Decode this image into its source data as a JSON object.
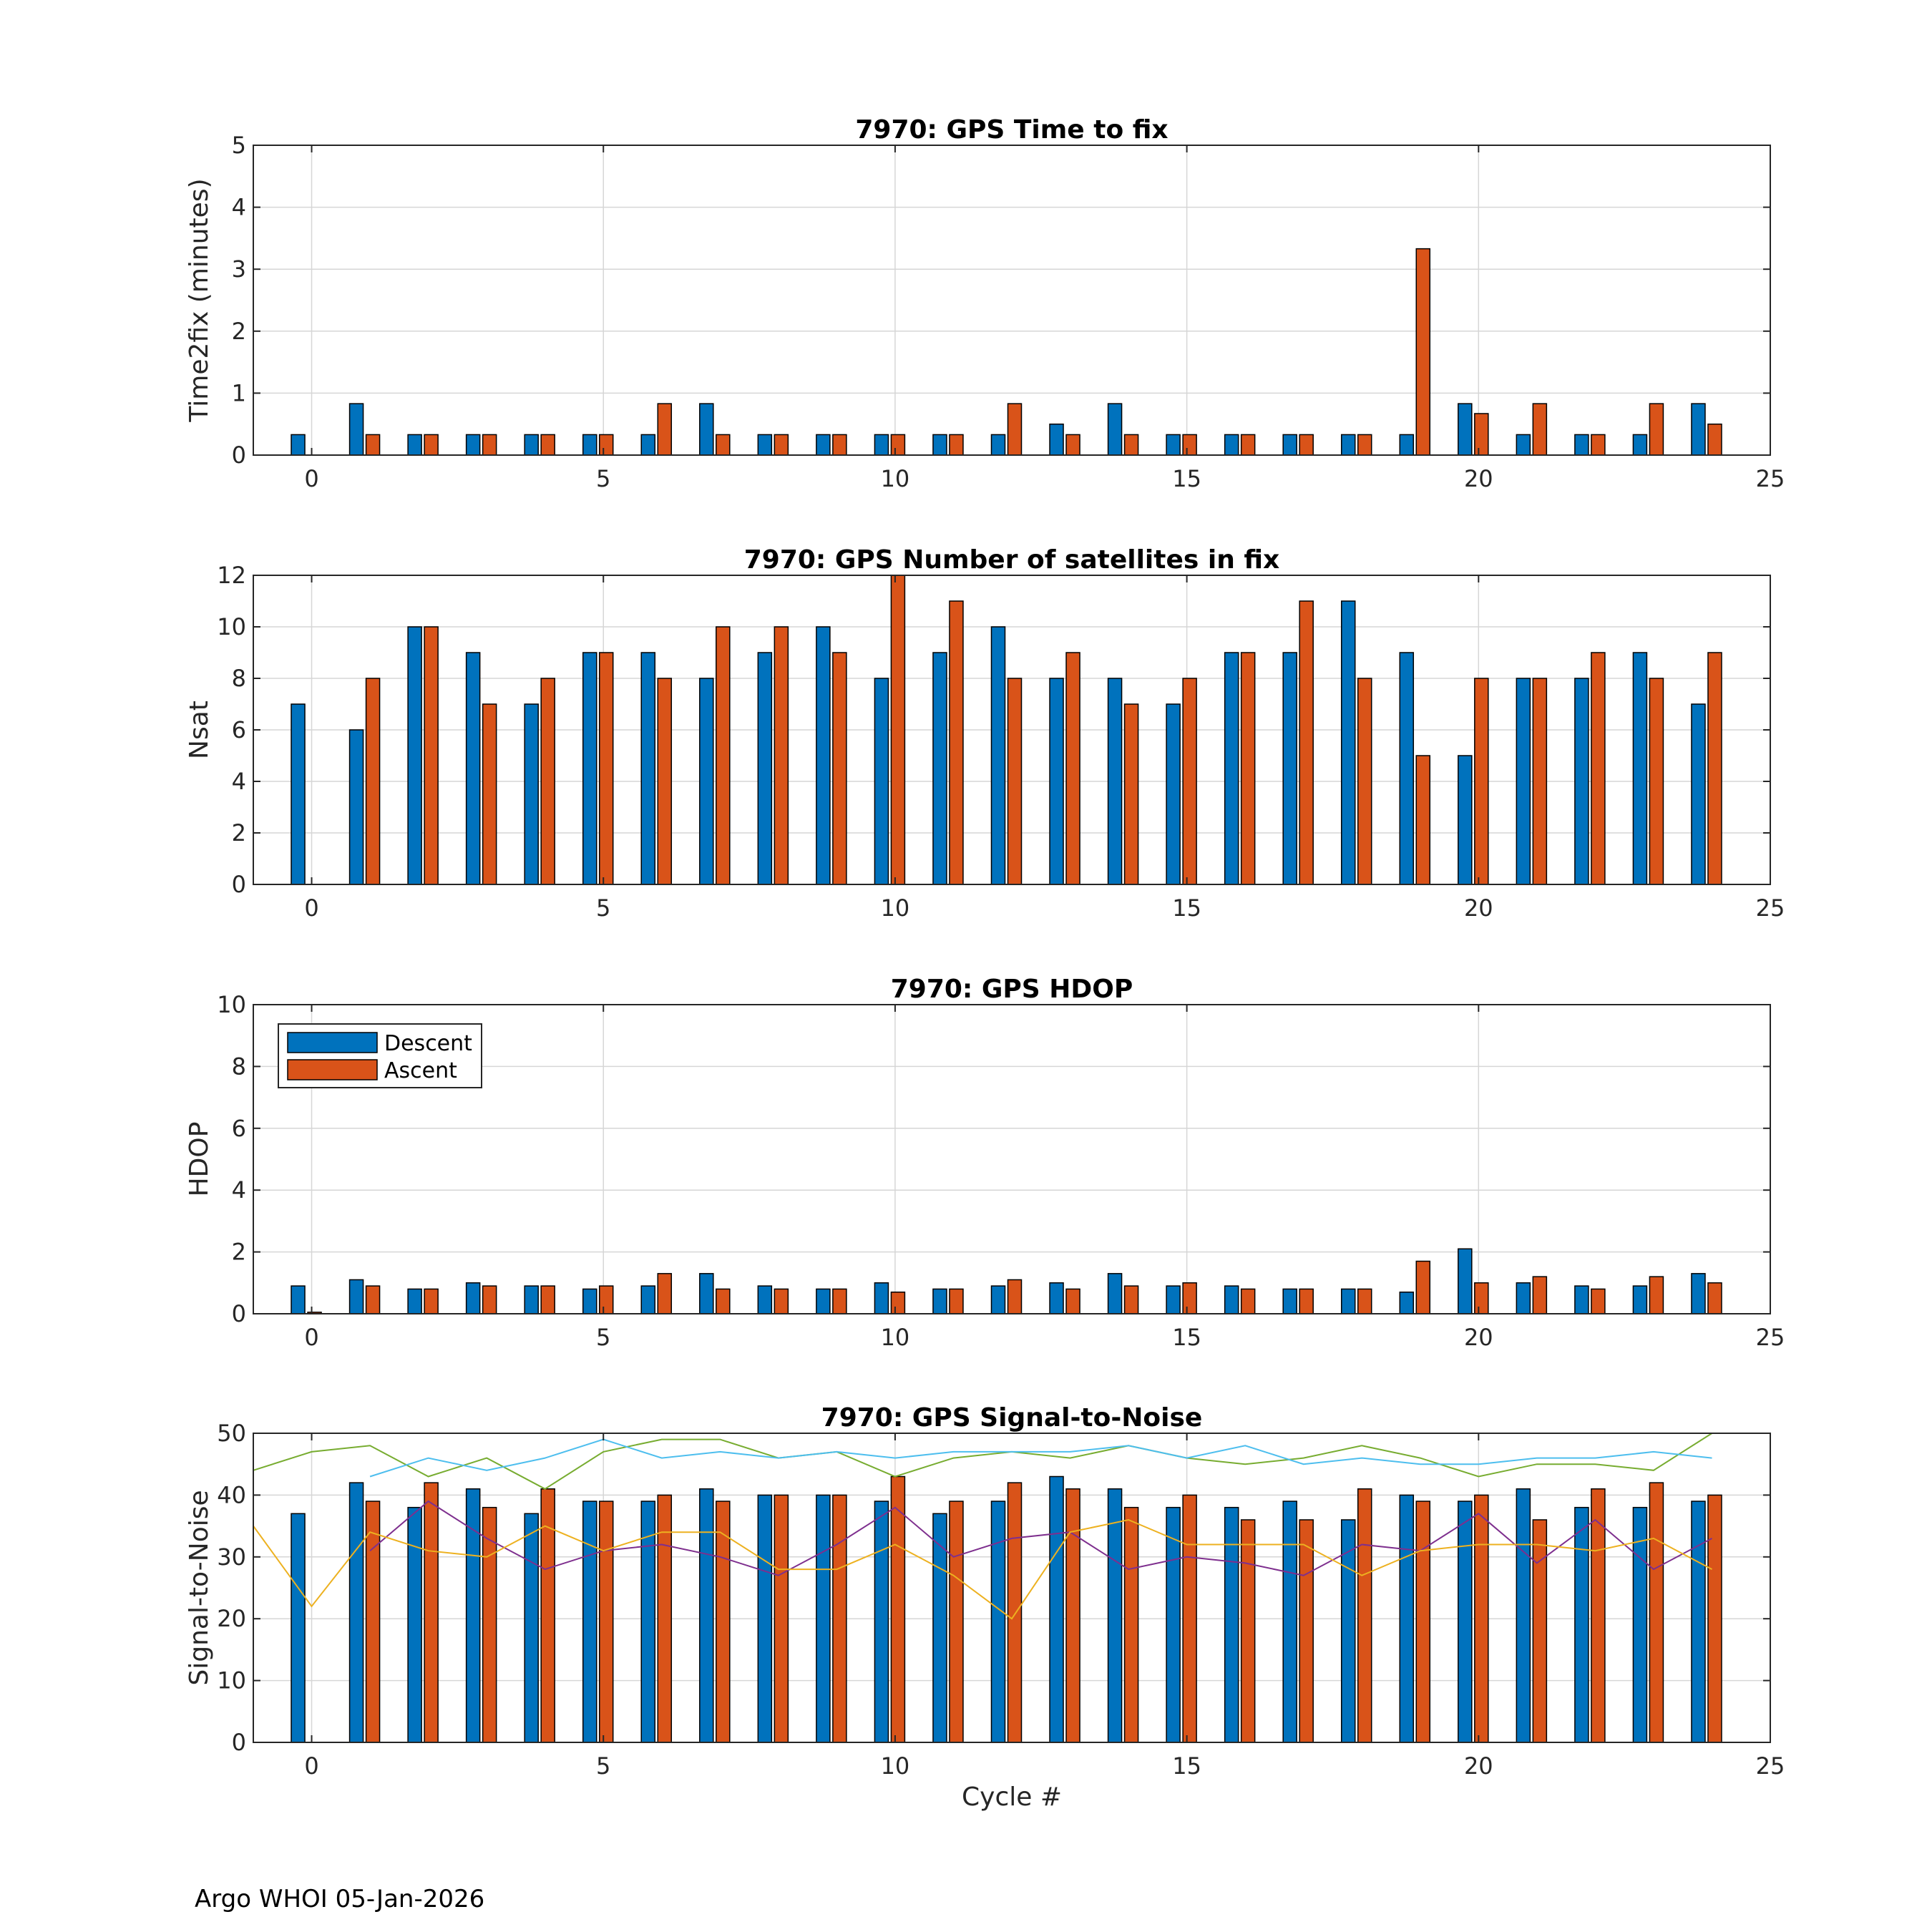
{
  "footer": "Argo WHOI 05-Jan-2026",
  "colors": {
    "descent": "#0072BD",
    "ascent": "#D95319",
    "grid": "#d6d6d6",
    "axis": "#262626"
  },
  "legend": {
    "descent": "Descent",
    "ascent": "Ascent",
    "placement": "upper-left of HDOP panel"
  },
  "chart_data": [
    {
      "type": "bar",
      "title": "7970: GPS Time to fix",
      "xlabel": "",
      "ylabel": "Time2fix (minutes)",
      "xlim": [
        -1,
        25
      ],
      "ylim": [
        0,
        5
      ],
      "xticks": [
        0,
        5,
        10,
        15,
        20,
        25
      ],
      "yticks": [
        0,
        1,
        2,
        3,
        4,
        5
      ],
      "x": [
        0,
        1,
        2,
        3,
        4,
        5,
        6,
        7,
        8,
        9,
        10,
        11,
        12,
        13,
        14,
        15,
        16,
        17,
        18,
        19,
        20,
        21,
        22,
        23,
        24
      ],
      "series": [
        {
          "name": "Descent",
          "values": [
            0.33,
            0.83,
            0.33,
            0.33,
            0.33,
            0.33,
            0.33,
            0.83,
            0.33,
            0.33,
            0.33,
            0.33,
            0.33,
            0.5,
            0.83,
            0.33,
            0.33,
            0.33,
            0.33,
            0.33,
            0.83,
            0.33,
            0.33,
            0.33,
            0.83
          ]
        },
        {
          "name": "Ascent",
          "values": [
            null,
            0.33,
            0.33,
            0.33,
            0.33,
            0.33,
            0.83,
            0.33,
            0.33,
            0.33,
            0.33,
            0.33,
            0.83,
            0.33,
            0.33,
            0.33,
            0.33,
            0.33,
            0.33,
            3.33,
            0.67,
            0.83,
            0.33,
            0.83,
            0.5
          ]
        }
      ]
    },
    {
      "type": "bar",
      "title": "7970: GPS Number of satellites in fix",
      "xlabel": "",
      "ylabel": "Nsat",
      "xlim": [
        -1,
        25
      ],
      "ylim": [
        0,
        12
      ],
      "xticks": [
        0,
        5,
        10,
        15,
        20,
        25
      ],
      "yticks": [
        0,
        2,
        4,
        6,
        8,
        10,
        12
      ],
      "x": [
        0,
        1,
        2,
        3,
        4,
        5,
        6,
        7,
        8,
        9,
        10,
        11,
        12,
        13,
        14,
        15,
        16,
        17,
        18,
        19,
        20,
        21,
        22,
        23,
        24
      ],
      "series": [
        {
          "name": "Descent",
          "values": [
            7,
            6,
            10,
            9,
            7,
            9,
            9,
            8,
            9,
            10,
            8,
            9,
            10,
            8,
            8,
            7,
            9,
            9,
            11,
            9,
            5,
            8,
            8,
            9,
            7
          ]
        },
        {
          "name": "Ascent",
          "values": [
            null,
            8,
            10,
            7,
            8,
            9,
            8,
            10,
            10,
            9,
            12,
            11,
            8,
            9,
            7,
            8,
            9,
            11,
            8,
            5,
            8,
            8,
            9,
            8,
            9
          ]
        }
      ]
    },
    {
      "type": "bar",
      "title": "7970: GPS HDOP",
      "xlabel": "",
      "ylabel": "HDOP",
      "xlim": [
        -1,
        25
      ],
      "ylim": [
        0,
        10
      ],
      "xticks": [
        0,
        5,
        10,
        15,
        20,
        25
      ],
      "yticks": [
        0,
        2,
        4,
        6,
        8,
        10
      ],
      "x": [
        0,
        1,
        2,
        3,
        4,
        5,
        6,
        7,
        8,
        9,
        10,
        11,
        12,
        13,
        14,
        15,
        16,
        17,
        18,
        19,
        20,
        21,
        22,
        23,
        24
      ],
      "series": [
        {
          "name": "Descent",
          "values": [
            0.9,
            1.1,
            0.8,
            1.0,
            0.9,
            0.8,
            0.9,
            1.3,
            0.9,
            0.8,
            1.0,
            0.8,
            0.9,
            1.0,
            1.3,
            0.9,
            0.9,
            0.8,
            0.8,
            0.7,
            2.1,
            1.0,
            0.9,
            0.9,
            1.3
          ]
        },
        {
          "name": "Ascent",
          "values": [
            0.05,
            0.9,
            0.8,
            0.9,
            0.9,
            0.9,
            1.3,
            0.8,
            0.8,
            0.8,
            0.7,
            0.8,
            1.1,
            0.8,
            0.9,
            1.0,
            0.8,
            0.8,
            0.8,
            1.7,
            1.0,
            1.2,
            0.8,
            1.2,
            1.0
          ]
        }
      ]
    },
    {
      "type": "bar",
      "title": "7970: GPS Signal-to-Noise",
      "xlabel": "Cycle #",
      "ylabel": "Signal-to-Noise",
      "xlim": [
        -1,
        25
      ],
      "ylim": [
        0,
        50
      ],
      "xticks": [
        0,
        5,
        10,
        15,
        20,
        25
      ],
      "yticks": [
        0,
        10,
        20,
        30,
        40,
        50
      ],
      "x": [
        0,
        1,
        2,
        3,
        4,
        5,
        6,
        7,
        8,
        9,
        10,
        11,
        12,
        13,
        14,
        15,
        16,
        17,
        18,
        19,
        20,
        21,
        22,
        23,
        24
      ],
      "series": [
        {
          "name": "Descent",
          "values": [
            37,
            42,
            38,
            41,
            37,
            39,
            39,
            41,
            40,
            40,
            39,
            37,
            39,
            43,
            41,
            38,
            38,
            39,
            36,
            40,
            39,
            41,
            38,
            38,
            39
          ]
        },
        {
          "name": "Ascent",
          "values": [
            null,
            39,
            42,
            38,
            41,
            39,
            40,
            39,
            40,
            40,
            43,
            39,
            42,
            41,
            38,
            40,
            36,
            36,
            41,
            39,
            40,
            36,
            41,
            42,
            40
          ]
        }
      ],
      "lines": [
        {
          "name": "green",
          "color": "#77AC30",
          "x": [
            -1,
            0,
            1,
            2,
            3,
            4,
            5,
            6,
            7,
            8,
            9,
            10,
            11,
            12,
            13,
            14,
            15,
            16,
            17,
            18,
            19,
            20,
            21,
            22,
            23,
            24
          ],
          "values": [
            44,
            47,
            48,
            43,
            46,
            41,
            47,
            49,
            49,
            46,
            47,
            43,
            46,
            47,
            46,
            48,
            46,
            45,
            46,
            48,
            46,
            43,
            45,
            45,
            44,
            51
          ]
        },
        {
          "name": "cyan",
          "color": "#4DBEEE",
          "x": [
            1,
            2,
            3,
            4,
            5,
            6,
            7,
            8,
            9,
            10,
            11,
            12,
            13,
            14,
            15,
            16,
            17,
            18,
            19,
            20,
            21,
            22,
            23,
            24
          ],
          "values": [
            43,
            46,
            44,
            46,
            49,
            46,
            47,
            46,
            47,
            46,
            47,
            47,
            47,
            48,
            46,
            48,
            45,
            46,
            45,
            45,
            46,
            46,
            47,
            46
          ]
        },
        {
          "name": "purple",
          "color": "#7E2F8E",
          "x": [
            1,
            2,
            3,
            4,
            5,
            6,
            7,
            8,
            9,
            10,
            11,
            12,
            13,
            14,
            15,
            16,
            17,
            18,
            19,
            20,
            21,
            22,
            23,
            24
          ],
          "values": [
            31,
            39,
            33,
            28,
            31,
            32,
            30,
            27,
            32,
            38,
            30,
            33,
            34,
            28,
            30,
            29,
            27,
            32,
            31,
            37,
            29,
            36,
            28,
            33
          ]
        },
        {
          "name": "orange",
          "color": "#EDB120",
          "x": [
            -1,
            0,
            1,
            2,
            3,
            4,
            5,
            6,
            7,
            8,
            9,
            10,
            11,
            12,
            13,
            14,
            15,
            16,
            17,
            18,
            19,
            20,
            21,
            22,
            23,
            24
          ],
          "values": [
            35,
            22,
            34,
            31,
            30,
            35,
            31,
            34,
            34,
            28,
            28,
            32,
            27,
            20,
            34,
            36,
            32,
            32,
            32,
            27,
            31,
            32,
            32,
            31,
            33,
            28
          ]
        }
      ]
    }
  ]
}
